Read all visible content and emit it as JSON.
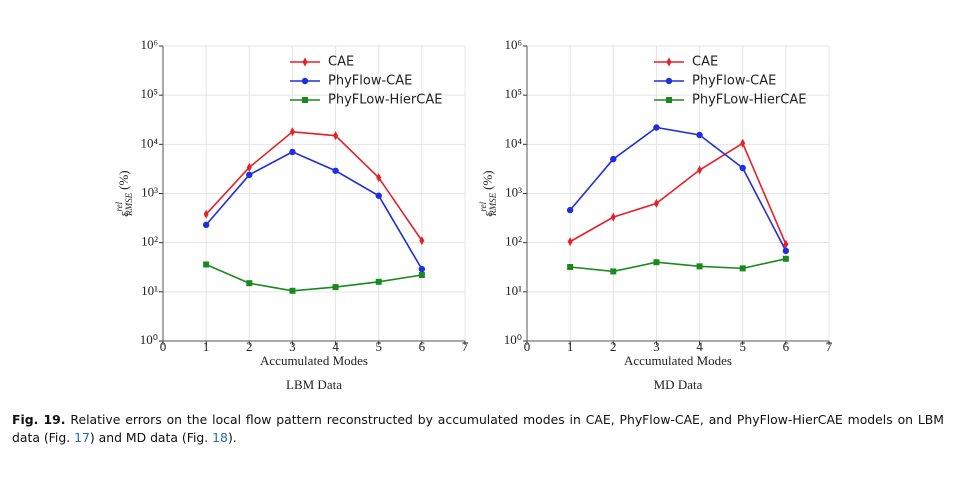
{
  "chart_data": [
    {
      "type": "line",
      "title": "LBM Data",
      "xlabel": "Accumulated Modes",
      "ylabel": {
        "symbol": "ε",
        "superscript": "rel",
        "subscript": "RMSE",
        "unit": "(%)"
      },
      "x": [
        1,
        2,
        3,
        4,
        5,
        6
      ],
      "xlim": [
        0,
        7
      ],
      "xticks": [
        0,
        1,
        2,
        3,
        4,
        5,
        6,
        7
      ],
      "ylim": [
        1,
        1000000
      ],
      "log_y": true,
      "grid": true,
      "legend": "upper right",
      "yticks": [
        {
          "value": 1,
          "label": "10⁰"
        },
        {
          "value": 10,
          "label": "10¹"
        },
        {
          "value": 100,
          "label": "10²"
        },
        {
          "value": 1000,
          "label": "10³"
        },
        {
          "value": 10000,
          "label": "10⁴"
        },
        {
          "value": 100000,
          "label": "10⁵"
        },
        {
          "value": 1000000,
          "label": "10⁶"
        }
      ],
      "series": [
        {
          "name": "CAE",
          "color": "#e62028",
          "marker": "diamond",
          "values": [
            380,
            3400,
            18000,
            15000,
            2100,
            110
          ]
        },
        {
          "name": "PhyFlow-CAE",
          "color": "#1f2fe0",
          "marker": "circle",
          "values": [
            230,
            2400,
            7000,
            2900,
            900,
            29
          ]
        },
        {
          "name": "PhyFLow-HierCAE",
          "color": "#1a8a1e",
          "marker": "square",
          "values": [
            36,
            15,
            10.5,
            12.5,
            16,
            22
          ]
        }
      ]
    },
    {
      "type": "line",
      "title": "MD Data",
      "xlabel": "Accumulated Modes",
      "ylabel": {
        "symbol": "ε",
        "superscript": "rel",
        "subscript": "RMSE",
        "unit": "(%)"
      },
      "x": [
        1,
        2,
        3,
        4,
        5,
        6
      ],
      "xlim": [
        0,
        7
      ],
      "xticks": [
        0,
        1,
        2,
        3,
        4,
        5,
        6,
        7
      ],
      "ylim": [
        1,
        1000000
      ],
      "log_y": true,
      "grid": true,
      "legend": "upper right",
      "yticks": [
        {
          "value": 1,
          "label": "10⁰"
        },
        {
          "value": 10,
          "label": "10¹"
        },
        {
          "value": 100,
          "label": "10²"
        },
        {
          "value": 1000,
          "label": "10³"
        },
        {
          "value": 10000,
          "label": "10⁴"
        },
        {
          "value": 100000,
          "label": "10⁵"
        },
        {
          "value": 1000000,
          "label": "10⁶"
        }
      ],
      "series": [
        {
          "name": "CAE",
          "color": "#e62028",
          "marker": "diamond",
          "values": [
            105,
            330,
            630,
            3000,
            10500,
            93
          ]
        },
        {
          "name": "PhyFlow-CAE",
          "color": "#1f2fe0",
          "marker": "circle",
          "values": [
            460,
            5000,
            22000,
            15500,
            3300,
            68
          ]
        },
        {
          "name": "PhyFLow-HierCAE",
          "color": "#1a8a1e",
          "marker": "square",
          "values": [
            32,
            26,
            40,
            33,
            30,
            47
          ]
        }
      ]
    }
  ],
  "caption": {
    "label": "Fig. 19.",
    "text": " Relative errors on the local flow pattern reconstructed by accumulated modes in CAE, PhyFlow-CAE, and PhyFlow-HierCAE models on LBM data (Fig. ",
    "ref1": "17",
    "text2": ") and MD data (Fig. ",
    "ref2": "18",
    "text3": ")."
  }
}
